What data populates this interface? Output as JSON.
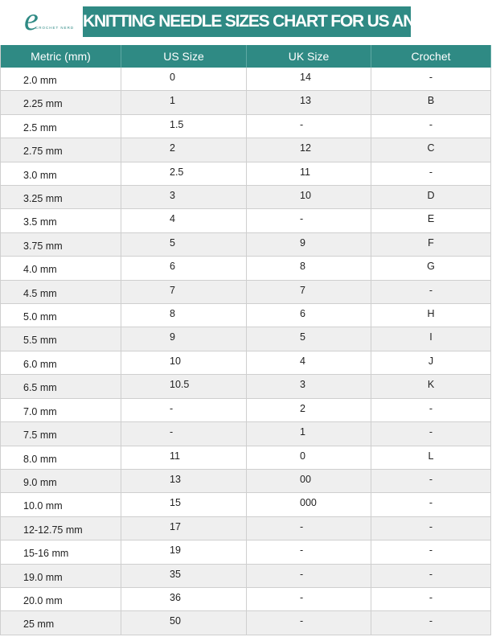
{
  "logo": {
    "mark": "e",
    "text": "CROCHET NERD"
  },
  "title": "KNITTING NEEDLE SIZES CHART FOR US AND UK",
  "table": {
    "header": [
      "Metric (mm)",
      "US Size",
      "UK Size",
      "Crochet"
    ],
    "rows": [
      [
        "2.0 mm",
        "0",
        "14",
        "-"
      ],
      [
        "2.25 mm",
        "1",
        "13",
        "B"
      ],
      [
        "2.5 mm",
        "1.5",
        "-",
        "-"
      ],
      [
        "2.75 mm",
        "2",
        "12",
        "C"
      ],
      [
        "3.0 mm",
        "2.5",
        "11",
        "-"
      ],
      [
        "3.25 mm",
        "3",
        "10",
        "D"
      ],
      [
        "3.5 mm",
        "4",
        "-",
        "E"
      ],
      [
        "3.75 mm",
        "5",
        "9",
        "F"
      ],
      [
        "4.0 mm",
        "6",
        "8",
        "G"
      ],
      [
        "4.5 mm",
        "7",
        "7",
        "-"
      ],
      [
        "5.0 mm",
        "8",
        "6",
        "H"
      ],
      [
        "5.5 mm",
        "9",
        "5",
        "I"
      ],
      [
        "6.0 mm",
        "10",
        "4",
        "J"
      ],
      [
        "6.5 mm",
        "10.5",
        "3",
        "K"
      ],
      [
        "7.0 mm",
        "-",
        "2",
        "-"
      ],
      [
        "7.5 mm",
        "-",
        "1",
        "-"
      ],
      [
        "8.0 mm",
        "11",
        "0",
        "L"
      ],
      [
        "9.0 mm",
        "13",
        "00",
        "-"
      ],
      [
        "10.0 mm",
        "15",
        "000",
        "-"
      ],
      [
        "12-12.75 mm",
        "17",
        "-",
        "-"
      ],
      [
        "15-16 mm",
        "19",
        "-",
        "-"
      ],
      [
        "19.0 mm",
        "35",
        "-",
        "-"
      ],
      [
        "20.0 mm",
        "36",
        "-",
        "-"
      ],
      [
        "25 mm",
        "50",
        "-",
        "-"
      ]
    ]
  }
}
